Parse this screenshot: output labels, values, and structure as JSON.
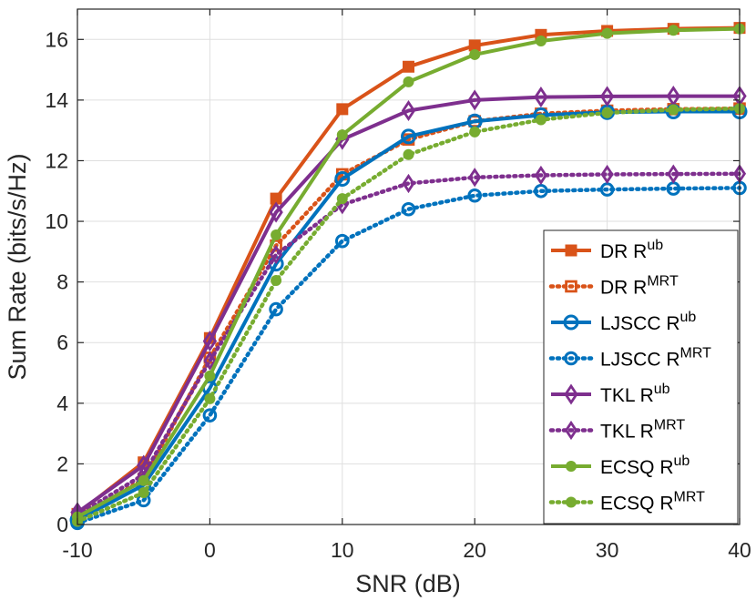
{
  "chart_data": {
    "type": "line",
    "title": "",
    "xlabel": "SNR (dB)",
    "ylabel": "Sum Rate (bits/s/Hz)",
    "xlim": [
      -10,
      40
    ],
    "ylim": [
      0,
      17
    ],
    "xticks": [
      -10,
      0,
      10,
      20,
      30,
      40
    ],
    "yticks": [
      0,
      2,
      4,
      6,
      8,
      10,
      12,
      14,
      16
    ],
    "grid": true,
    "legend_position": "lower-right",
    "x": [
      -10,
      -5,
      0,
      5,
      10,
      15,
      20,
      25,
      30,
      35,
      40
    ],
    "series": [
      {
        "name": "DR",
        "sup": "ub",
        "color": "#D95319",
        "style": "solid",
        "marker": "square",
        "values": [
          0.35,
          2.05,
          6.15,
          10.75,
          13.7,
          15.1,
          15.8,
          16.15,
          16.28,
          16.35,
          16.38
        ]
      },
      {
        "name": "DR",
        "sup": "MRT",
        "color": "#D95319",
        "style": "dotted",
        "marker": "square",
        "values": [
          0.2,
          1.5,
          5.5,
          9.2,
          11.55,
          12.7,
          13.3,
          13.55,
          13.65,
          13.7,
          13.72
        ]
      },
      {
        "name": "LJSCC",
        "sup": "ub",
        "color": "#0072BD",
        "style": "solid",
        "marker": "circle",
        "values": [
          0.15,
          1.3,
          4.5,
          8.6,
          11.4,
          12.8,
          13.3,
          13.5,
          13.6,
          13.62,
          13.62
        ]
      },
      {
        "name": "LJSCC",
        "sup": "MRT",
        "color": "#0072BD",
        "style": "dotted",
        "marker": "circle",
        "values": [
          0.05,
          0.8,
          3.6,
          7.1,
          9.35,
          10.4,
          10.85,
          11.0,
          11.05,
          11.08,
          11.1
        ]
      },
      {
        "name": "TKL",
        "sup": "ub",
        "color": "#7E2F8E",
        "style": "solid",
        "marker": "diamond",
        "values": [
          0.4,
          1.95,
          6.05,
          10.3,
          12.7,
          13.65,
          14.0,
          14.1,
          14.12,
          14.13,
          14.13
        ]
      },
      {
        "name": "TKL",
        "sup": "MRT",
        "color": "#7E2F8E",
        "style": "dotted",
        "marker": "diamond",
        "values": [
          0.3,
          1.65,
          5.4,
          8.9,
          10.55,
          11.25,
          11.45,
          11.52,
          11.55,
          11.56,
          11.57
        ]
      },
      {
        "name": "ECSQ",
        "sup": "ub",
        "color": "#77AC30",
        "style": "solid",
        "marker": "dot",
        "values": [
          0.25,
          1.45,
          4.9,
          9.55,
          12.85,
          14.6,
          15.5,
          15.95,
          16.2,
          16.3,
          16.35
        ]
      },
      {
        "name": "ECSQ",
        "sup": "MRT",
        "color": "#77AC30",
        "style": "dotted",
        "marker": "dot",
        "values": [
          0.1,
          1.05,
          4.15,
          8.05,
          10.75,
          12.2,
          12.95,
          13.35,
          13.58,
          13.68,
          13.72
        ]
      }
    ],
    "legend_prefix": "R"
  }
}
